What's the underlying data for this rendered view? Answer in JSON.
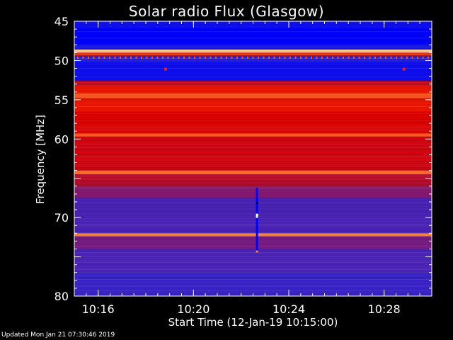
{
  "chart_data": {
    "type": "heatmap",
    "title": "Solar radio Flux (Glasgow)",
    "ylabel": "Frequency [MHz]",
    "xlabel": "Start Time (12-Jan-19 10:15:00)",
    "y_range": [
      45,
      80
    ],
    "y_ticks": [
      "45",
      "50",
      "55",
      "60",
      "70",
      "80"
    ],
    "x_range": [
      "10:15:00",
      "10:30:00"
    ],
    "x_ticks": [
      {
        "label": "10:16",
        "time": "10:16:00"
      },
      {
        "label": "10:20",
        "time": "10:20:00"
      },
      {
        "label": "10:24",
        "time": "10:24:00"
      },
      {
        "label": "10:28",
        "time": "10:28:00"
      }
    ],
    "colormap": [
      "#0000ff",
      "#2222dd",
      "#5522aa",
      "#aa1144",
      "#dd0000",
      "#ff3300",
      "#ff8844",
      "#ffddaa",
      "#ffffff"
    ],
    "intensity_bands": [
      {
        "f0": 45,
        "f1": 45.9,
        "level": 0.05
      },
      {
        "f0": 45.9,
        "f1": 48.0,
        "level": 0.0
      },
      {
        "f0": 48.0,
        "f1": 48.6,
        "level": 0.1
      },
      {
        "f0": 48.6,
        "f1": 49.0,
        "level": 0.85
      },
      {
        "f0": 49.0,
        "f1": 49.4,
        "level": 0.6
      },
      {
        "f0": 49.4,
        "f1": 50.2,
        "level": 0.12
      },
      {
        "f0": 50.2,
        "f1": 52.6,
        "level": 0.05
      },
      {
        "f0": 52.6,
        "f1": 53.2,
        "level": 0.45
      },
      {
        "f0": 53.2,
        "f1": 54.2,
        "level": 0.55
      },
      {
        "f0": 54.2,
        "f1": 54.8,
        "level": 0.68
      },
      {
        "f0": 54.8,
        "f1": 56.5,
        "level": 0.55
      },
      {
        "f0": 56.5,
        "f1": 59.3,
        "level": 0.5
      },
      {
        "f0": 59.3,
        "f1": 59.7,
        "level": 0.68
      },
      {
        "f0": 59.7,
        "f1": 64.0,
        "level": 0.47
      },
      {
        "f0": 64.0,
        "f1": 64.5,
        "level": 0.7
      },
      {
        "f0": 64.5,
        "f1": 66.0,
        "level": 0.42
      },
      {
        "f0": 66.0,
        "f1": 67.5,
        "level": 0.32
      },
      {
        "f0": 67.5,
        "f1": 72.0,
        "level": 0.22
      },
      {
        "f0": 72.0,
        "f1": 72.4,
        "level": 0.75
      },
      {
        "f0": 72.4,
        "f1": 74.0,
        "level": 0.3
      },
      {
        "f0": 74.0,
        "f1": 77.0,
        "level": 0.22
      },
      {
        "f0": 77.0,
        "f1": 80.0,
        "level": 0.18
      }
    ],
    "features": [
      {
        "kind": "burst-column",
        "time": "10:22:40",
        "f0": 66.2,
        "f1": 74.5
      },
      {
        "kind": "spot",
        "time": "10:18:50",
        "freq": 51.1
      },
      {
        "kind": "spot",
        "time": "10:28:50",
        "freq": 51.1
      }
    ]
  },
  "footer": "Updated Mon Jan 21 07:30:46 2019"
}
